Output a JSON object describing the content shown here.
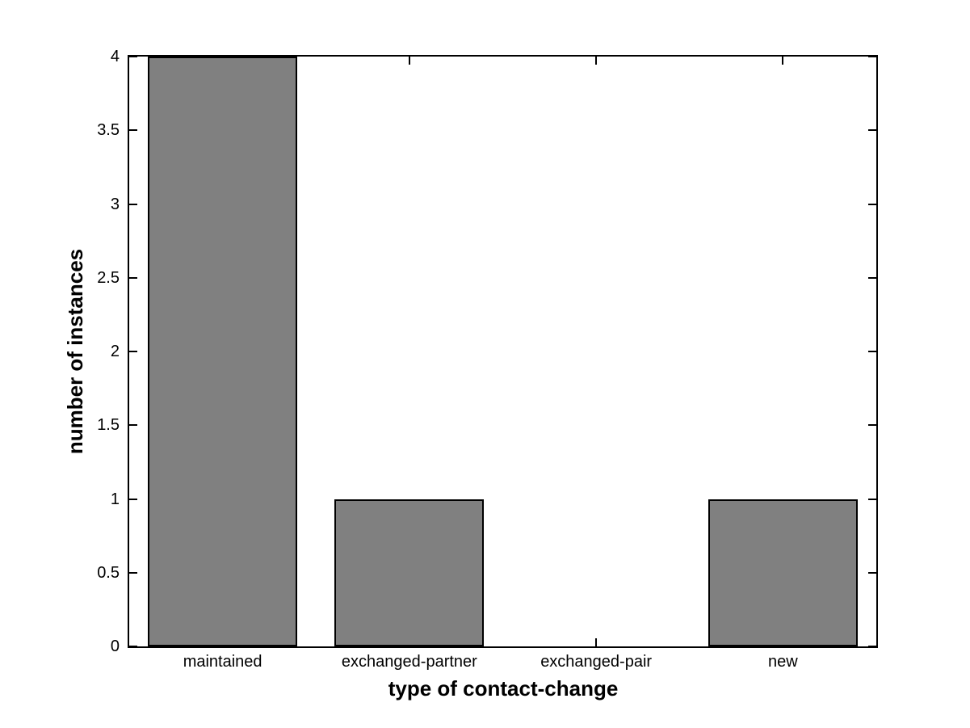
{
  "chart_data": {
    "type": "bar",
    "title": "",
    "categories": [
      "maintained",
      "exchanged-partner",
      "exchanged-pair",
      "new"
    ],
    "values": [
      4,
      1,
      0,
      1
    ],
    "xlabel": "type of contact-change",
    "ylabel": "number of instances",
    "ylim": [
      0,
      4
    ],
    "yticks": [
      0,
      0.5,
      1,
      1.5,
      2,
      2.5,
      3,
      3.5,
      4
    ],
    "grid": false,
    "legend": null,
    "box": true,
    "tick_direction": "in",
    "bar_width_fraction": 0.8,
    "bar_color": "#808080",
    "bar_edge_color": "#000000",
    "axis_color": "#000000",
    "text_color": "#000000",
    "background_color": "#ffffff"
  }
}
